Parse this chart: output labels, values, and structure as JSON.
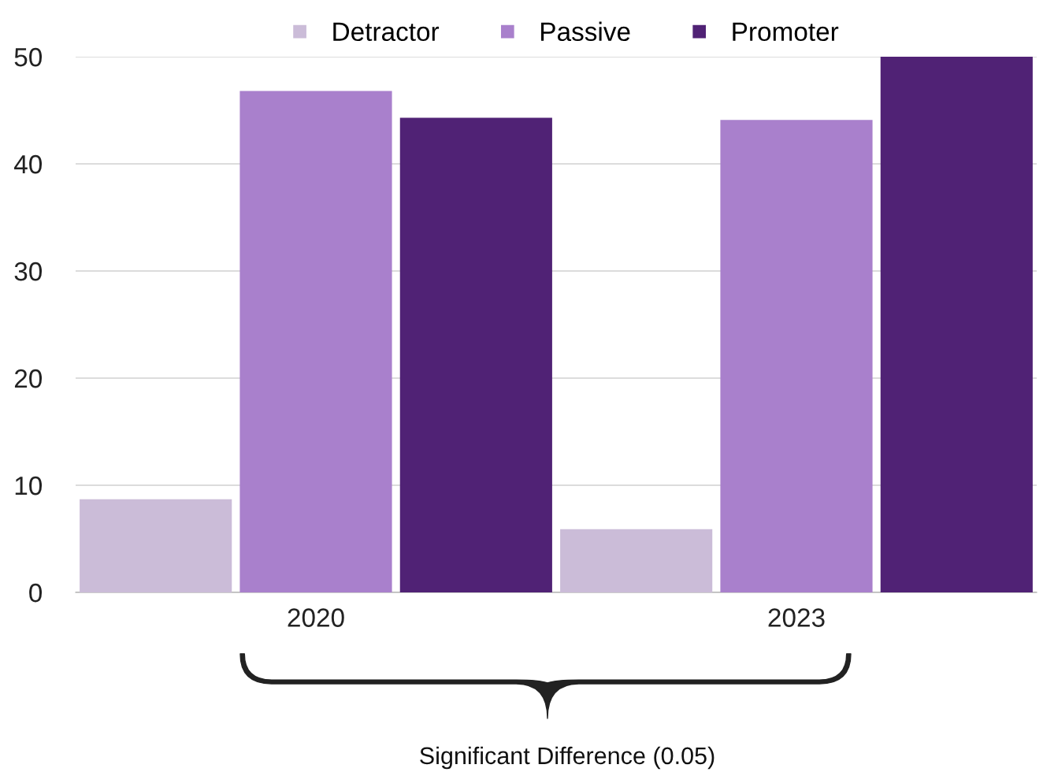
{
  "chart_data": {
    "type": "bar",
    "categories": [
      "2020",
      "2023"
    ],
    "series": [
      {
        "name": "Detractor",
        "color": "#cbbcd8",
        "values": [
          8.7,
          5.9
        ]
      },
      {
        "name": "Passive",
        "color": "#a980cc",
        "values": [
          46.8,
          44.1
        ]
      },
      {
        "name": "Promoter",
        "color": "#502275",
        "values": [
          44.3,
          50.0
        ]
      }
    ],
    "ylim": [
      0,
      50
    ],
    "yticks": [
      0,
      10,
      20,
      30,
      40,
      50
    ],
    "grid": "y",
    "legend": "top",
    "annotations": [
      "Significant Difference (0.05)"
    ]
  }
}
